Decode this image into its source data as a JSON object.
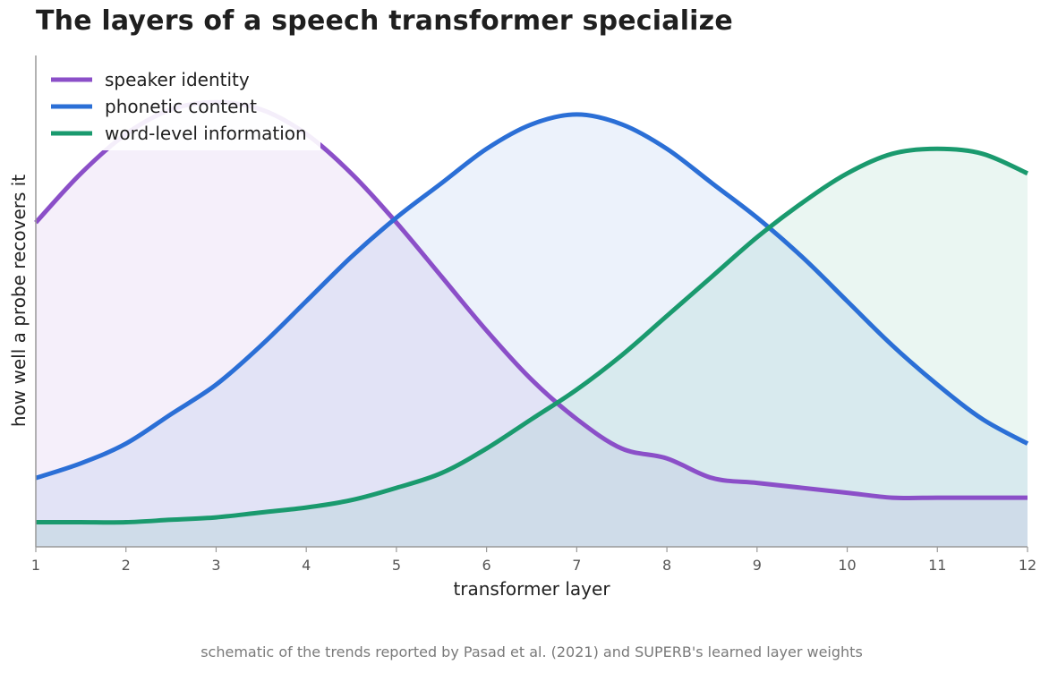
{
  "chart_data": {
    "type": "area",
    "title": "The layers of a speech transformer specialize",
    "xlabel": "transformer layer",
    "ylabel": "how well a probe recovers it",
    "caption": "schematic of the trends reported by Pasad et al. (2021) and SUPERB's learned layer weights",
    "x": [
      1,
      1.5,
      2,
      2.5,
      3,
      3.5,
      4,
      4.5,
      5,
      5.5,
      6,
      6.5,
      7,
      7.5,
      8,
      8.5,
      9,
      9.5,
      10,
      10.5,
      11,
      11.5,
      12
    ],
    "xlim": [
      1,
      12
    ],
    "ylim": [
      0,
      1
    ],
    "x_ticks": [
      "1",
      "2",
      "3",
      "4",
      "5",
      "6",
      "7",
      "8",
      "9",
      "10",
      "11",
      "12"
    ],
    "y_ticks_shown": false,
    "grid": false,
    "legend_position": "top-left",
    "series": [
      {
        "name": "speaker identity",
        "color": "#8b4fc8",
        "values": [
          0.66,
          0.76,
          0.84,
          0.89,
          0.905,
          0.89,
          0.84,
          0.76,
          0.66,
          0.55,
          0.44,
          0.34,
          0.26,
          0.2,
          0.18,
          0.14,
          0.13,
          0.12,
          0.11,
          0.1,
          0.1,
          0.1,
          0.1
        ]
      },
      {
        "name": "phonetic content",
        "color": "#2b6fd6",
        "values": [
          0.14,
          0.17,
          0.21,
          0.27,
          0.33,
          0.41,
          0.5,
          0.59,
          0.67,
          0.74,
          0.81,
          0.86,
          0.88,
          0.86,
          0.81,
          0.74,
          0.67,
          0.59,
          0.5,
          0.41,
          0.33,
          0.26,
          0.21
        ]
      },
      {
        "name": "word-level information",
        "color": "#1a9a6e",
        "values": [
          0.05,
          0.05,
          0.05,
          0.055,
          0.06,
          0.07,
          0.08,
          0.095,
          0.12,
          0.15,
          0.2,
          0.26,
          0.32,
          0.39,
          0.47,
          0.55,
          0.63,
          0.7,
          0.76,
          0.8,
          0.81,
          0.8,
          0.76
        ]
      }
    ]
  }
}
